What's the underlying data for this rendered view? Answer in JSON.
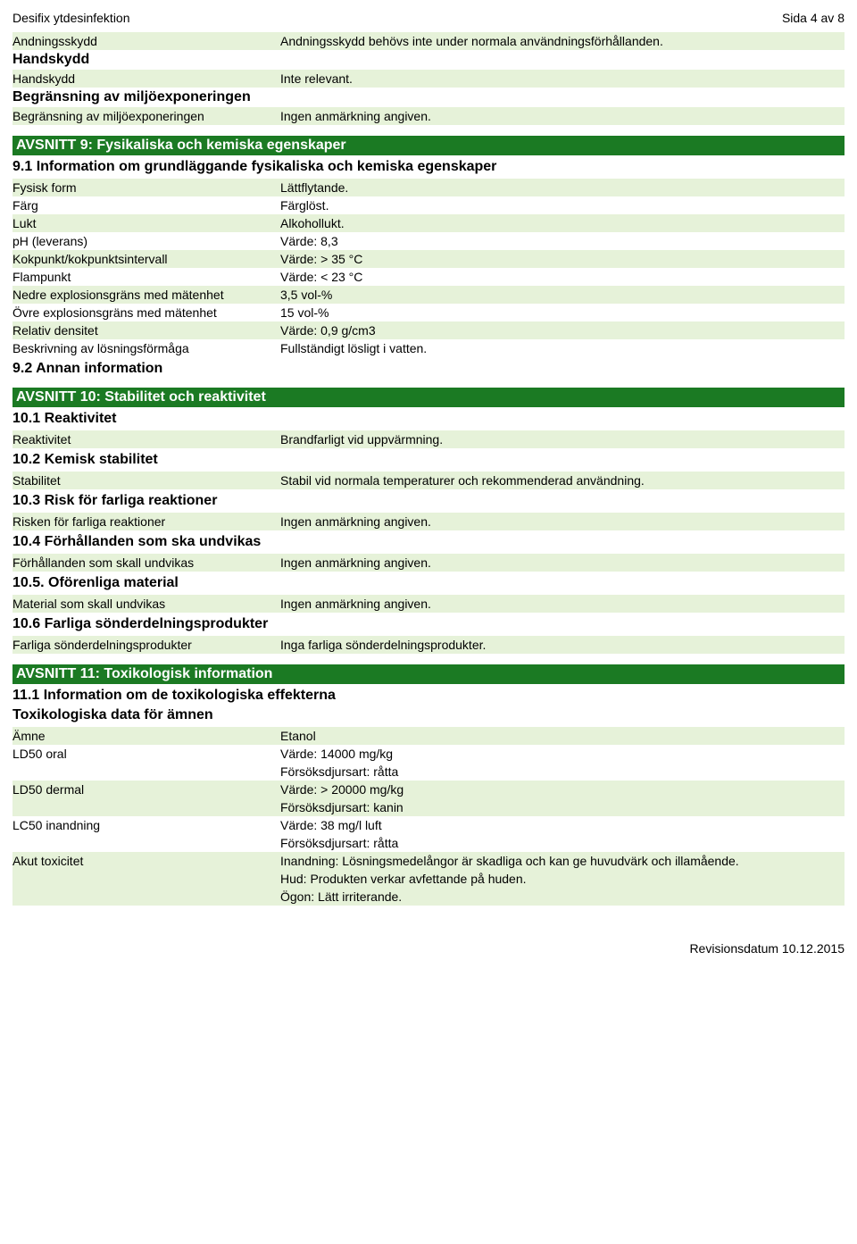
{
  "colors": {
    "section_bar_bg": "#1b7a23",
    "section_bar_text": "#ffffff",
    "shade_bg": "#e6f2d9",
    "body_bg": "#ffffff",
    "text": "#000000"
  },
  "header": {
    "doc_title": "Desifix ytdesinfektion",
    "page_indicator": "Sida 4 av 8"
  },
  "section8": {
    "rows": [
      {
        "label": "Andningsskydd",
        "value": "Andningsskydd behövs inte under normala användningsförhållanden.",
        "shaded": true
      },
      {
        "label": "Handskydd",
        "value": "",
        "bold_label": true
      },
      {
        "label": "Handskydd",
        "value": "Inte relevant.",
        "shaded": true
      },
      {
        "label": "Begränsning av miljöexponeringen",
        "value": "",
        "bold_label": true
      },
      {
        "label": "Begränsning av miljöexponeringen",
        "value": "Ingen anmärkning angiven.",
        "shaded": true
      }
    ]
  },
  "section9": {
    "title": "AVSNITT 9: Fysikaliska och kemiska egenskaper",
    "sub91": "9.1 Information om grundläggande fysikaliska och kemiska egenskaper",
    "rows": [
      {
        "label": "Fysisk form",
        "value": "Lättflytande.",
        "shaded": true
      },
      {
        "label": "Färg",
        "value": "Färglöst.",
        "shaded": false
      },
      {
        "label": "Lukt",
        "value": "Alkohollukt.",
        "shaded": true
      },
      {
        "label": "pH (leverans)",
        "value": "Värde: 8,3",
        "shaded": false
      },
      {
        "label": "Kokpunkt/kokpunktsintervall",
        "value": "Värde: > 35 °C",
        "shaded": true
      },
      {
        "label": "Flampunkt",
        "value": "Värde: < 23 °C",
        "shaded": false
      },
      {
        "label": "Nedre explosionsgräns med mätenhet",
        "value": "3,5 vol-%",
        "shaded": true
      },
      {
        "label": "Övre explosionsgräns med mätenhet",
        "value": "15 vol-%",
        "shaded": false
      },
      {
        "label": "Relativ densitet",
        "value": "Värde: 0,9 g/cm3",
        "shaded": true
      },
      {
        "label": "Beskrivning av lösningsförmåga",
        "value": "Fullständigt lösligt i vatten.",
        "shaded": false
      }
    ],
    "sub92": "9.2 Annan information"
  },
  "section10": {
    "title": "AVSNITT 10: Stabilitet och reaktivitet",
    "sub101": "10.1 Reaktivitet",
    "rows101": [
      {
        "label": "Reaktivitet",
        "value": "Brandfarligt vid uppvärmning.",
        "shaded": true
      }
    ],
    "sub102": "10.2 Kemisk stabilitet",
    "rows102": [
      {
        "label": "Stabilitet",
        "value": "Stabil vid normala temperaturer och rekommenderad användning.",
        "shaded": true
      }
    ],
    "sub103": "10.3 Risk för farliga reaktioner",
    "rows103": [
      {
        "label": "Risken för farliga reaktioner",
        "value": "Ingen anmärkning angiven.",
        "shaded": true
      }
    ],
    "sub104": "10.4 Förhållanden som ska undvikas",
    "rows104": [
      {
        "label": "Förhållanden som skall undvikas",
        "value": "Ingen anmärkning angiven.",
        "shaded": true
      }
    ],
    "sub105": "10.5. Oförenliga material",
    "rows105": [
      {
        "label": "Material som skall undvikas",
        "value": "Ingen anmärkning angiven.",
        "shaded": true
      }
    ],
    "sub106": "10.6 Farliga sönderdelningsprodukter",
    "rows106": [
      {
        "label": "Farliga sönderdelningsprodukter",
        "value": "Inga farliga sönderdelningsprodukter.",
        "shaded": true
      }
    ]
  },
  "section11": {
    "title": "AVSNITT 11: Toxikologisk information",
    "sub111": "11.1 Information om de toxikologiska effekterna",
    "sub_tox": "Toxikologiska data för ämnen",
    "rows": [
      {
        "label": "Ämne",
        "value": "Etanol",
        "shaded": true
      },
      {
        "label": "LD50 oral",
        "value": "Värde: 14000 mg/kg",
        "shaded": false
      },
      {
        "label": "",
        "value": "Försöksdjursart: råtta",
        "shaded": false
      },
      {
        "label": "LD50 dermal",
        "value": "Värde: > 20000 mg/kg",
        "shaded": true
      },
      {
        "label": "",
        "value": "Försöksdjursart: kanin",
        "shaded": true
      },
      {
        "label": "LC50 inandning",
        "value": "Värde: 38 mg/l luft",
        "shaded": false
      },
      {
        "label": "",
        "value": "Försöksdjursart: råtta",
        "shaded": false
      },
      {
        "label": "Akut toxicitet",
        "value": "Inandning: Lösningsmedelångor är skadliga och kan ge huvudvärk och illamående.",
        "shaded": true
      },
      {
        "label": "",
        "value": "Hud: Produkten verkar avfettande på huden.",
        "shaded": true
      },
      {
        "label": "",
        "value": "Ögon: Lätt irriterande.",
        "shaded": true
      }
    ]
  },
  "footer": {
    "revision": "Revisionsdatum 10.12.2015"
  }
}
